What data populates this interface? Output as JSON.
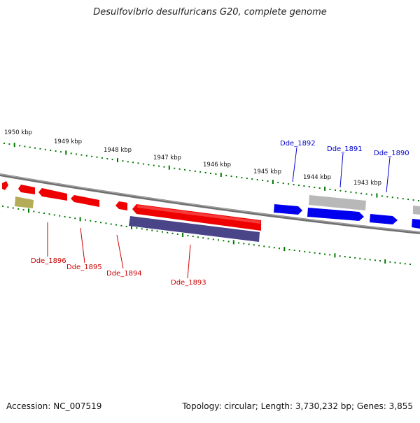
{
  "title": "Desulfovibrio desulfuricans G20, complete genome",
  "footer": {
    "accession": "Accession: NC_007519",
    "summary": "Topology: circular; Length: 3,730,232 bp; Genes: 3,855"
  },
  "scale_labels": [
    "1950 kbp",
    "1949 kbp",
    "1948 kbp",
    "1947 kbp",
    "1946 kbp",
    "1945 kbp",
    "1944 kbp",
    "1943 kbp"
  ],
  "gene_labels": {
    "top": [
      "Dde_1892",
      "Dde_1891",
      "Dde_1890"
    ],
    "bottom": [
      "Dde_1896",
      "Dde_1895",
      "Dde_1894",
      "Dde_1893"
    ]
  },
  "colors": {
    "forward_gene": "#0000ee",
    "reverse_gene": "#ee0000",
    "label_top": "#0000cc",
    "label_bottom": "#cc0000",
    "tick": "#007700",
    "backbone": "#808080",
    "grey_feature": "#b8b8b8",
    "purple_feature": "#4a4488",
    "olive_feature": "#b5ac5a"
  }
}
